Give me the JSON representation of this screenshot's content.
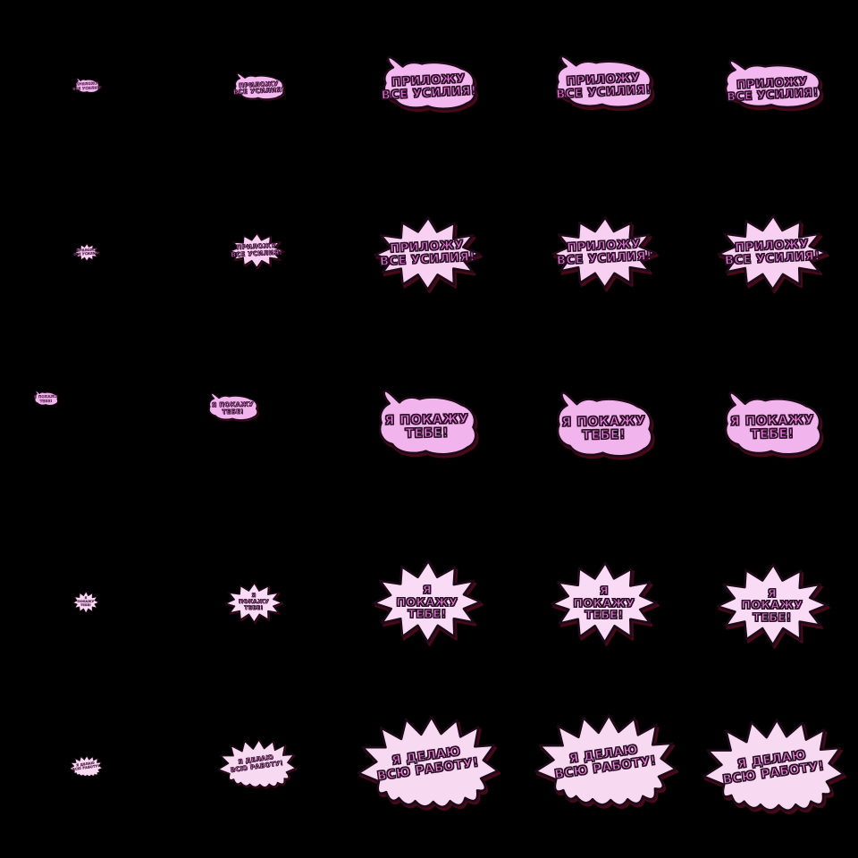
{
  "sheet": {
    "background_color": "#000000",
    "outline_color": "#1c0b16",
    "shadow_color": "#45091a"
  },
  "stickers": {
    "rows": [
      {
        "id": "prilozhu-vse-usiliya-cloud",
        "shape": "cloud",
        "full_text": "ПРИЛОЖУ ВСЕ УСИЛИЯ!",
        "lines": [
          "ПРИЛОЖУ",
          "ВСЕ УСИЛИЯ!"
        ],
        "bubble_color": "#f3b8f0",
        "text_color": "#e873dc"
      },
      {
        "id": "prilozhu-vse-usiliya-burst",
        "shape": "burst",
        "full_text": "ПРИЛОЖУ ВСЕ УСИЛИЯ!",
        "lines": [
          "ПРИЛОЖУ",
          "ВСЕ УСИЛИЯ!"
        ],
        "bubble_color": "#f7d0f2",
        "text_color": "#e878dc"
      },
      {
        "id": "ya-pokazhu-tebe-cloud",
        "shape": "cloud",
        "full_text": "Я ПОКАЖУ ТЕБЕ!",
        "lines": [
          "Я ПОКАЖУ",
          "ТЕБЕ!"
        ],
        "bubble_color": "#f2b4ec",
        "text_color": "#ef7ce2"
      },
      {
        "id": "ya-pokazhu-tebe-burst",
        "shape": "burst",
        "full_text": "Я ПОКАЖУ ТЕБЕ!",
        "lines": [
          "Я",
          "ПОКАЖУ",
          "ТЕБЕ!"
        ],
        "bubble_color": "#f9dbf6",
        "text_color": "#ee86e0"
      },
      {
        "id": "ya-delayu-vsyu-rabotu-burst",
        "shape": "wideburst",
        "full_text": "Я ДЕЛАЮ ВСЮ РАБОТУ!",
        "lines": [
          "Я ДЕЛАЮ",
          "ВСЮ РАБОТУ!"
        ],
        "bubble_color": "#f7d9f2",
        "text_color": "#ee84dc"
      }
    ]
  }
}
